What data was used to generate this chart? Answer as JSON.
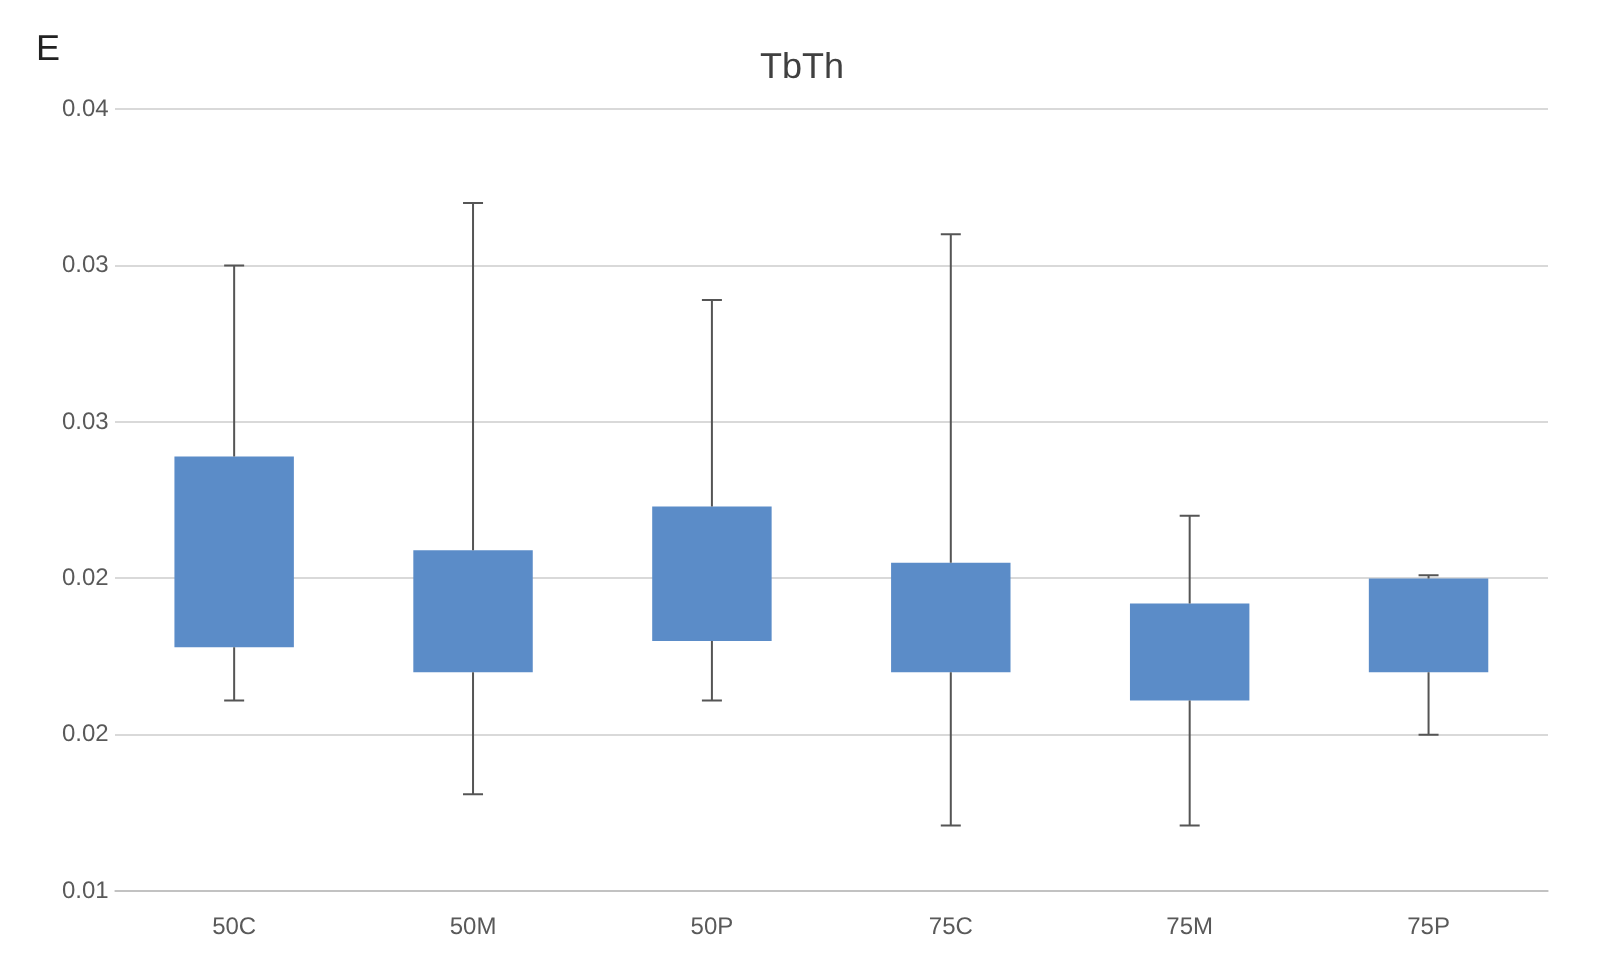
{
  "chart_data": {
    "type": "bar",
    "title": "TbTh",
    "annotations": [
      "E"
    ],
    "categories": [
      "50C",
      "50M",
      "50P",
      "75C",
      "75M",
      "75P"
    ],
    "base": [
      0.0178,
      0.017,
      0.018,
      0.017,
      0.0161,
      0.017
    ],
    "values": [
      0.0061,
      0.0039,
      0.0043,
      0.0035,
      0.0031,
      0.003
    ],
    "errors": [
      [
        0.0161,
        0.03
      ],
      [
        0.0131,
        0.032
      ],
      [
        0.0161,
        0.0289
      ],
      [
        0.0121,
        0.031
      ],
      [
        0.0121,
        0.022
      ],
      [
        0.015,
        0.0201
      ]
    ],
    "color": "#5b8cc8",
    "ylim": [
      0.01,
      0.035
    ],
    "yticks": [
      {
        "value": 0.01,
        "label": "0.01"
      },
      {
        "value": 0.015,
        "label": "0.02"
      },
      {
        "value": 0.02,
        "label": "0.02"
      },
      {
        "value": 0.025,
        "label": "0.03"
      },
      {
        "value": 0.03,
        "label": "0.03"
      },
      {
        "value": 0.035,
        "label": "0.04"
      }
    ],
    "grid": "y",
    "legend": false
  }
}
